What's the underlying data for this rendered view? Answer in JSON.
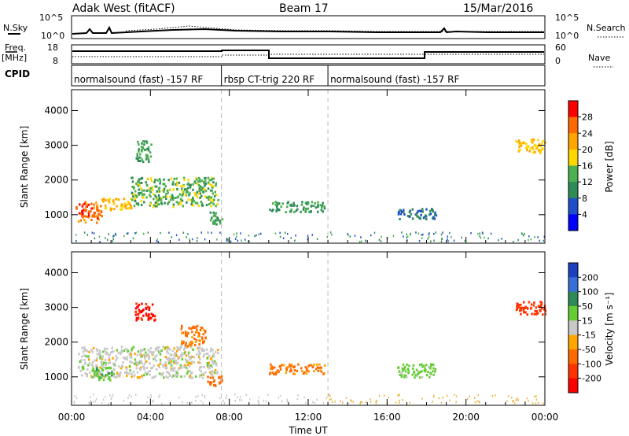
{
  "header": {
    "title": "Adak West (fitACF)",
    "beam": "Beam 17",
    "date": "15/Mar/2016"
  },
  "summary_panels": {
    "nsky": {
      "label": "N.Sky",
      "ticks": [
        "10^5",
        "10^0"
      ]
    },
    "nsearch": {
      "label": "N.Search",
      "ticks": [
        "10^5",
        "10^0"
      ]
    },
    "freq": {
      "label_top": "Freq.",
      "label_unit": "[MHz]",
      "ticks": [
        "18",
        "8"
      ]
    },
    "nave": {
      "label": "Nave",
      "ticks": [
        "60",
        "0"
      ]
    },
    "cpid": {
      "label": "CPID",
      "segments": [
        {
          "name": "normalsound (fast) -157 RF",
          "start_h": 0.0,
          "end_h": 7.6
        },
        {
          "name": "rbsp CT-trig 220 RF",
          "start_h": 7.6,
          "end_h": 13.0
        },
        {
          "name": "normalsound (fast) -157 RF",
          "start_h": 13.0,
          "end_h": 24.0
        }
      ]
    }
  },
  "chart_data": [
    {
      "type": "heatmap",
      "panel": "power",
      "ylabel": "Slant Range [km]",
      "xlim": [
        0,
        24
      ],
      "ylim": [
        180,
        4600
      ],
      "yticks": [
        1000,
        2000,
        3000,
        4000
      ],
      "colorbar": {
        "label": "Power [dB]",
        "ticks": [
          "28",
          "24",
          "20",
          "16",
          "12",
          "8",
          "4"
        ],
        "colors": [
          "#ff0000",
          "#ff6a00",
          "#ffa500",
          "#ffd700",
          "#4caf50",
          "#2e8b57",
          "#1e4fc8",
          "#0000ff"
        ]
      },
      "regions": [
        {
          "t": [
            0.2,
            1.5
          ],
          "r": [
            800,
            1400
          ],
          "power": 26
        },
        {
          "t": [
            1.5,
            3.0
          ],
          "r": [
            1150,
            1500
          ],
          "power": 20
        },
        {
          "t": [
            3.0,
            7.4
          ],
          "r": [
            1250,
            2100
          ],
          "power": 14
        },
        {
          "t": [
            3.2,
            4.0
          ],
          "r": [
            2550,
            3150
          ],
          "power": 12
        },
        {
          "t": [
            7.0,
            7.6
          ],
          "r": [
            750,
            1100
          ],
          "power": 12
        },
        {
          "t": [
            10.0,
            12.8
          ],
          "r": [
            1100,
            1400
          ],
          "power": 12
        },
        {
          "t": [
            16.5,
            18.5
          ],
          "r": [
            900,
            1200
          ],
          "power": 8
        },
        {
          "t": [
            22.5,
            24.0
          ],
          "r": [
            2800,
            3200
          ],
          "power": 20
        }
      ]
    },
    {
      "type": "heatmap",
      "panel": "velocity",
      "ylabel": "Slant Range [km]",
      "xlim": [
        0,
        24
      ],
      "ylim": [
        180,
        4600
      ],
      "yticks": [
        1000,
        2000,
        3000,
        4000
      ],
      "xticks": [
        "00:00",
        "04:00",
        "08:00",
        "12:00",
        "16:00",
        "20:00",
        "00:00"
      ],
      "xlabel": "Time UT",
      "colorbar": {
        "label": "Velocity [m s⁻¹]",
        "ticks": [
          "200",
          "100",
          "50",
          "15",
          "-15",
          "-50",
          "-100",
          "-200"
        ],
        "colors": [
          "#1e3fbf",
          "#3a6fd8",
          "#2e8b57",
          "#66cc33",
          "#c8c8c8",
          "#ffa500",
          "#ff6a00",
          "#ff3300",
          "#ff0000"
        ]
      },
      "regions": [
        {
          "t": [
            0.3,
            7.4
          ],
          "r": [
            1000,
            1900
          ],
          "velocity": 0
        },
        {
          "t": [
            1.0,
            2.0
          ],
          "r": [
            900,
            1300
          ],
          "velocity": 40
        },
        {
          "t": [
            3.2,
            4.2
          ],
          "r": [
            2650,
            3150
          ],
          "velocity": -200
        },
        {
          "t": [
            5.5,
            6.8
          ],
          "r": [
            1900,
            2500
          ],
          "velocity": -60
        },
        {
          "t": [
            6.8,
            7.6
          ],
          "r": [
            750,
            1050
          ],
          "velocity": -80
        },
        {
          "t": [
            10.0,
            12.8
          ],
          "r": [
            1100,
            1400
          ],
          "velocity": -60
        },
        {
          "t": [
            16.5,
            18.5
          ],
          "r": [
            1000,
            1400
          ],
          "velocity": 30
        },
        {
          "t": [
            22.5,
            24.0
          ],
          "r": [
            2800,
            3200
          ],
          "velocity": -120
        }
      ]
    }
  ]
}
